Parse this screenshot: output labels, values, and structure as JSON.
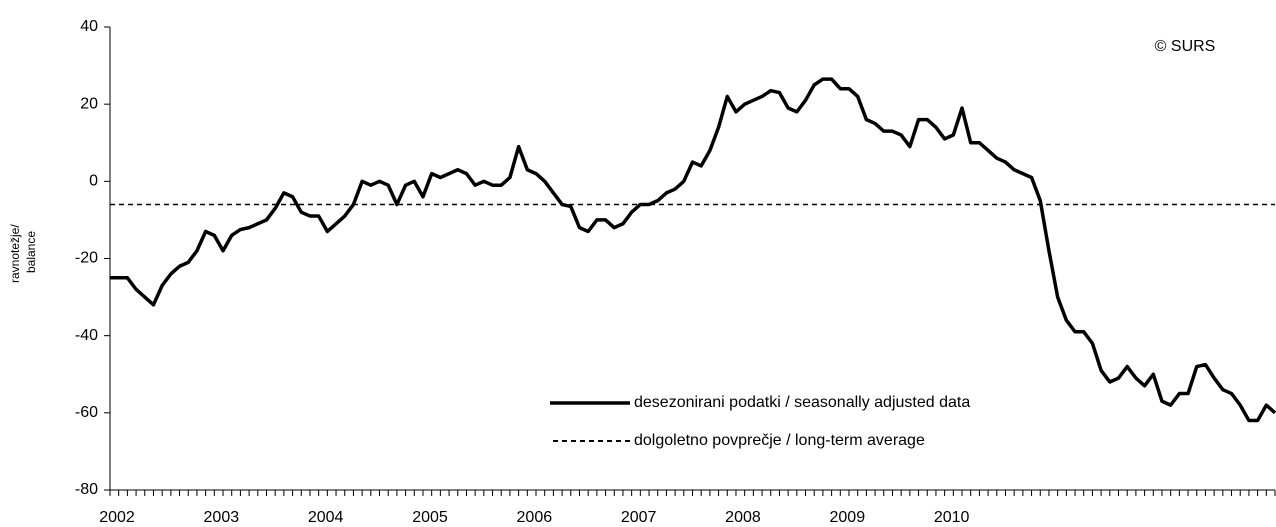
{
  "chart_data": {
    "type": "line",
    "y_label": [
      "ravnotežje/",
      "balance"
    ],
    "annotation": "© SURS",
    "categories": [
      "2002",
      null,
      null,
      null,
      null,
      null,
      null,
      null,
      null,
      null,
      null,
      null,
      "2003",
      null,
      null,
      null,
      null,
      null,
      null,
      null,
      null,
      null,
      null,
      null,
      "2004",
      null,
      null,
      null,
      null,
      null,
      null,
      null,
      null,
      null,
      null,
      null,
      "2005",
      null,
      null,
      null,
      null,
      null,
      null,
      null,
      null,
      null,
      null,
      null,
      "2006",
      null,
      null,
      null,
      null,
      null,
      null,
      null,
      null,
      null,
      null,
      null,
      "2007",
      null,
      null,
      null,
      null,
      null,
      null,
      null,
      null,
      null,
      null,
      null,
      "2008",
      null,
      null,
      null,
      null,
      null,
      null,
      null,
      null,
      null,
      null,
      null,
      "2009",
      null,
      null,
      null,
      null,
      null,
      null,
      null,
      null,
      null,
      null,
      null,
      "2010",
      null,
      null,
      null,
      null,
      null,
      null,
      null,
      null,
      null,
      null,
      null,
      null,
      null,
      null,
      null,
      null,
      null,
      null,
      null,
      null,
      null,
      null,
      null,
      null,
      null,
      null,
      null,
      null,
      null,
      null,
      null,
      null,
      null,
      null,
      null,
      null,
      null,
      null
    ],
    "series": [
      {
        "name": "desezonirani podatki / seasonally adjusted data",
        "color": "#000000",
        "values": [
          -25,
          -25,
          -25,
          -28,
          -30,
          -32,
          -27,
          -24,
          -22,
          -21,
          -18,
          -13,
          -14,
          -18,
          -14,
          -12.5,
          -12,
          -11,
          -10,
          -7,
          -3,
          -4,
          -8,
          -9,
          -9,
          -13,
          -11,
          -9,
          -6,
          0,
          -1,
          0,
          -1,
          -6,
          -1,
          0,
          -4,
          2,
          1,
          2,
          3,
          2,
          -1,
          0,
          -1,
          -1,
          1,
          9,
          3,
          2,
          0,
          -3,
          -6,
          -6.5,
          -12,
          -13,
          -10,
          -10,
          -12,
          -11,
          -8,
          -6,
          -6,
          -5,
          -3,
          -2,
          0,
          5,
          4,
          8,
          14,
          22,
          18,
          20,
          21,
          22,
          23.5,
          23,
          19,
          18,
          21,
          25,
          26.5,
          26.5,
          24,
          24,
          22,
          16,
          15,
          13,
          13,
          12,
          9,
          16,
          16,
          14,
          11,
          12,
          19,
          10,
          10,
          8,
          6,
          5,
          3,
          2,
          1,
          -5,
          -18,
          -30,
          -36,
          -39,
          -39,
          -42,
          -49,
          -52,
          -51,
          -48,
          -51,
          -53,
          -50,
          -57,
          -58,
          -55,
          -55,
          -48,
          -47.5,
          -51,
          -54,
          -55,
          -58,
          -62,
          -62,
          -58,
          -60
        ]
      }
    ],
    "average": {
      "name": "dolgoletno povprečje / long-term average",
      "value": -6,
      "color": "#000000"
    },
    "ylim": [
      -80,
      40
    ],
    "yticks": [
      -80,
      -60,
      -40,
      -20,
      0,
      20,
      40
    ]
  }
}
